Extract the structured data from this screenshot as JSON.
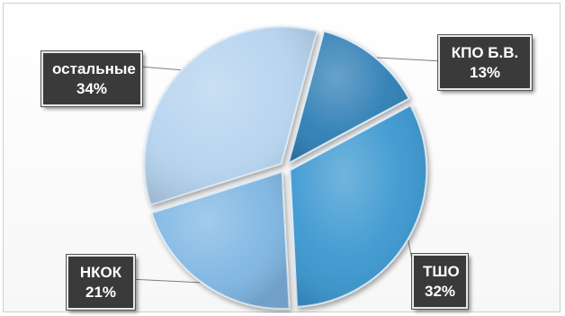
{
  "chart_data": {
    "type": "pie",
    "slices": [
      {
        "label": "КПО Б.В.",
        "value": 13,
        "value_label": "13%",
        "color": "#2e7eb5"
      },
      {
        "label": "ТШО",
        "value": 32,
        "value_label": "32%",
        "color": "#3a97d0"
      },
      {
        "label": "НКОК",
        "value": 21,
        "value_label": "21%",
        "color": "#7fb6e3"
      },
      {
        "label": "остальные",
        "value": 34,
        "value_label": "34%",
        "color": "#b5d3ef"
      }
    ],
    "start_angle_deg": 15,
    "exploded": true,
    "legend": "none",
    "data_labels": "callouts"
  }
}
